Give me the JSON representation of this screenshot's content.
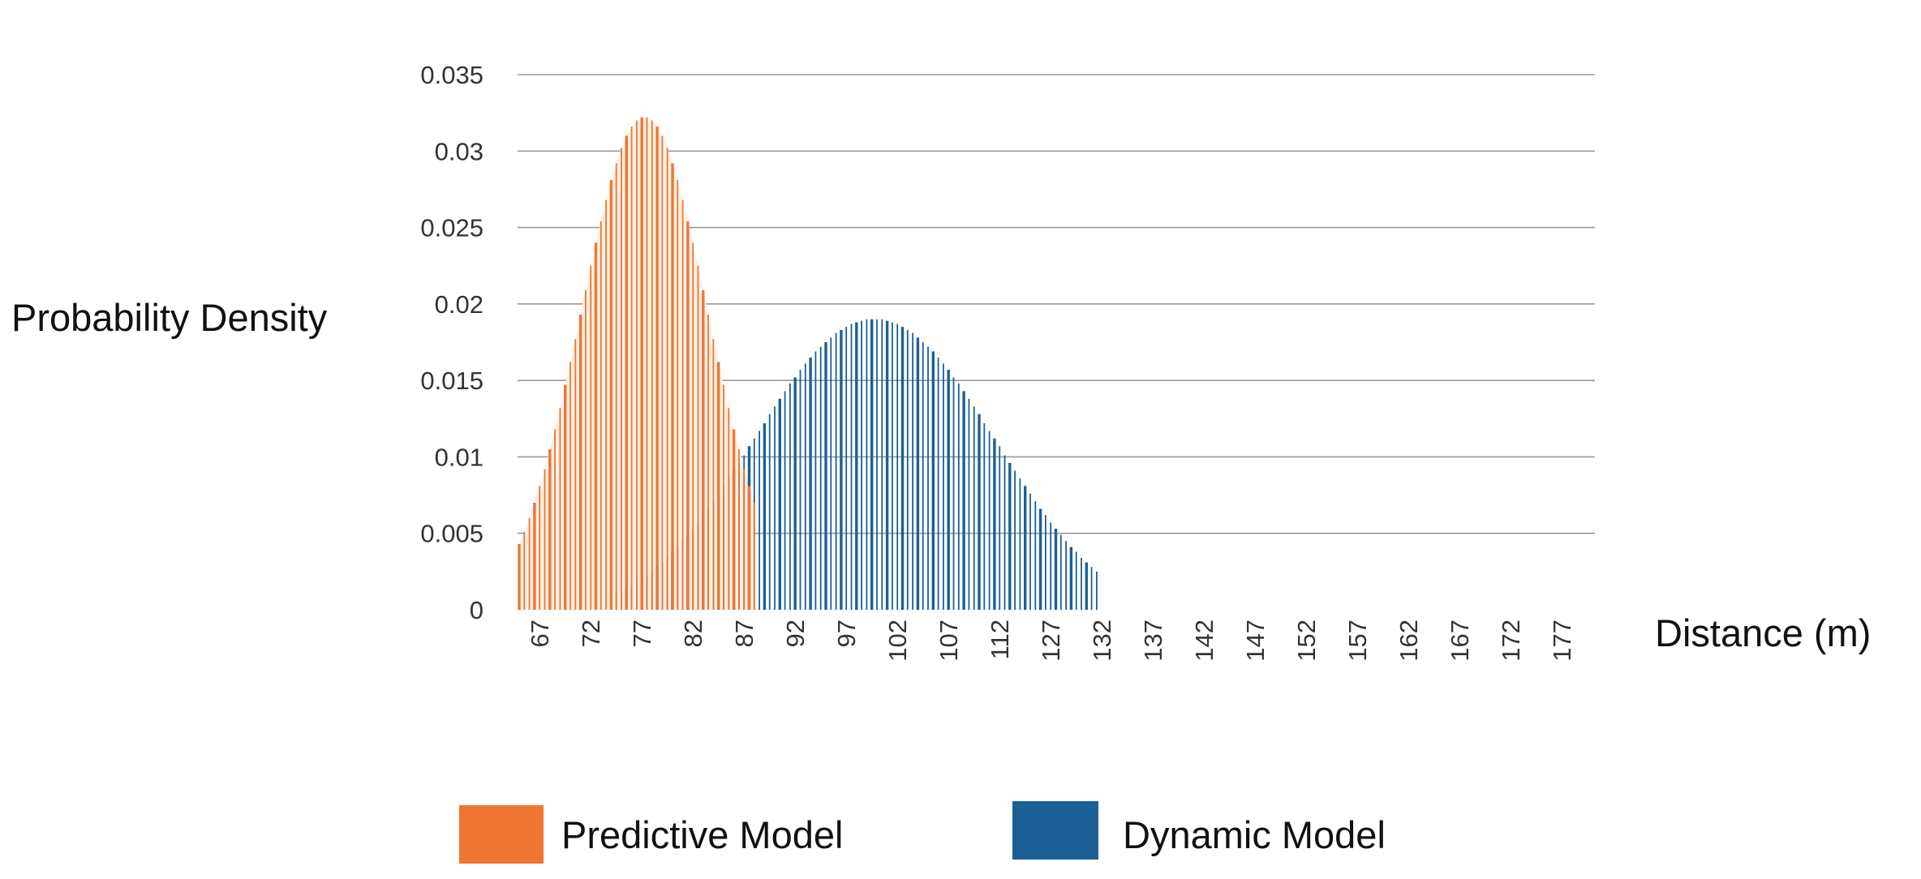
{
  "chart_data": {
    "type": "bar",
    "title": "",
    "xlabel": "Distance (m)",
    "ylabel": "Probability Density",
    "ylim": [
      0,
      0.035
    ],
    "yticks": [
      "0",
      "0.005",
      "0.01",
      "0.015",
      "0.02",
      "0.025",
      "0.03",
      "0.035"
    ],
    "xticks": [
      "67",
      "72",
      "77",
      "82",
      "87",
      "92",
      "97",
      "102",
      "107",
      "112",
      "127",
      "132",
      "137",
      "142",
      "147",
      "152",
      "157",
      "162",
      "167",
      "172",
      "177"
    ],
    "grid": true,
    "legend_position": "bottom",
    "colors": {
      "predictive": "#ee7633",
      "dynamic": "#1c5f96",
      "grid": "#9a9a9a",
      "predictive_fill": "#fdf0e4"
    },
    "series": [
      {
        "name": "Predictive Model",
        "x_start": 66,
        "values": [
          0.0043,
          0.0051,
          0.006,
          0.007,
          0.0081,
          0.0092,
          0.0105,
          0.0118,
          0.0132,
          0.0147,
          0.0162,
          0.0177,
          0.0193,
          0.0209,
          0.0225,
          0.024,
          0.0254,
          0.0268,
          0.0281,
          0.0292,
          0.0302,
          0.031,
          0.0316,
          0.032,
          0.0322,
          0.0322,
          0.032,
          0.0316,
          0.031,
          0.0302,
          0.0292,
          0.0281,
          0.0268,
          0.0254,
          0.024,
          0.0225,
          0.0209,
          0.0193,
          0.0177,
          0.0162,
          0.0147,
          0.0132,
          0.0118,
          0.0105,
          0.0092,
          0.0081,
          0.007
        ]
      },
      {
        "name": "Dynamic Model",
        "x_start": 85,
        "values": [
          0.0011,
          0.0012,
          0.0014,
          0.0016,
          0.0018,
          0.002,
          0.0023,
          0.0025,
          0.0028,
          0.0031,
          0.0034,
          0.0038,
          0.0041,
          0.0045,
          0.0049,
          0.0053,
          0.0057,
          0.0062,
          0.0066,
          0.0071,
          0.0076,
          0.0081,
          0.0086,
          0.0091,
          0.0096,
          0.0101,
          0.0107,
          0.0112,
          0.0117,
          0.0122,
          0.0128,
          0.0133,
          0.0138,
          0.0143,
          0.0148,
          0.0152,
          0.0157,
          0.0161,
          0.0165,
          0.0169,
          0.0172,
          0.0175,
          0.0178,
          0.0181,
          0.0183,
          0.0185,
          0.0187,
          0.0188,
          0.0189,
          0.019,
          0.019,
          0.019,
          0.019,
          0.0189,
          0.0188,
          0.0187,
          0.0185,
          0.0183,
          0.0181,
          0.0178,
          0.0175,
          0.0172,
          0.0169,
          0.0165,
          0.0161,
          0.0157,
          0.0152,
          0.0148,
          0.0143,
          0.0138,
          0.0133,
          0.0128,
          0.0122,
          0.0117,
          0.0112,
          0.0107,
          0.0101,
          0.0096,
          0.0091,
          0.0086,
          0.0081,
          0.0076,
          0.0071,
          0.0066,
          0.0062,
          0.0057,
          0.0053,
          0.0049,
          0.0045,
          0.0041,
          0.0038,
          0.0034,
          0.0031,
          0.0028,
          0.0025
        ]
      }
    ]
  }
}
